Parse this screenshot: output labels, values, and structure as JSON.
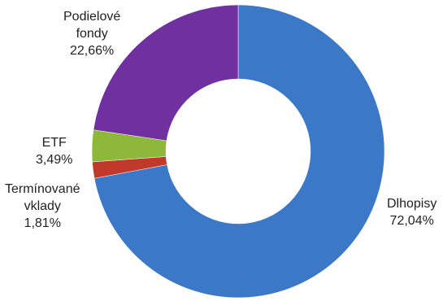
{
  "chart_data": {
    "type": "pie",
    "donut": true,
    "slices": [
      {
        "name": "Dlhopisy",
        "label_lines": [
          "Dlhopisy"
        ],
        "value": 72.04,
        "value_label": "72,04%",
        "color": "#3C78C8"
      },
      {
        "name": "Termínované vklady",
        "label_lines": [
          "Termínované",
          "vklady"
        ],
        "value": 1.81,
        "value_label": "1,81%",
        "color": "#C0392B"
      },
      {
        "name": "ETF",
        "label_lines": [
          "ETF"
        ],
        "value": 3.49,
        "value_label": "3,49%",
        "color": "#8DB83A"
      },
      {
        "name": "Podielové fondy",
        "label_lines": [
          "Podielové",
          "fondy"
        ],
        "value": 22.66,
        "value_label": "22,66%",
        "color": "#7030A0"
      }
    ]
  }
}
